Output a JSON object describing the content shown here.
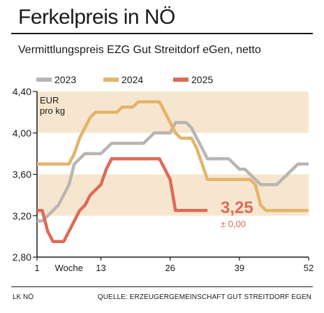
{
  "header": {
    "title": "Ferkelpreis in NÖ",
    "subtitle": "Vermittlungspreis EZG Gut Streitdorf eGen, netto"
  },
  "footer": {
    "left": "LK NÖ",
    "right": "QUELLE: ERZEUGERGEMEINSCHAFT GUT STREITDORF EGEN"
  },
  "colors": {
    "band": "#f7e6cf",
    "axis": "#1a1a1a",
    "text": "#1a1a1a"
  },
  "chart_data": {
    "type": "line",
    "title": "Ferkelpreis in NÖ",
    "subtitle": "Vermittlungspreis EZG Gut Streitdorf eGen, netto",
    "unit_label": [
      "EUR",
      "pro kg"
    ],
    "xlabel": "Woche",
    "xlim": [
      1,
      52
    ],
    "ylim": [
      2.8,
      4.4
    ],
    "xticks": [
      1,
      13,
      26,
      39,
      52
    ],
    "yticks": [
      2.8,
      3.2,
      3.6,
      4.0,
      4.4
    ],
    "ytick_labels": [
      "2,80",
      "3,20",
      "3,60",
      "4,00",
      "4,40"
    ],
    "bands": [
      [
        3.2,
        3.6
      ],
      [
        4.0,
        4.4
      ]
    ],
    "grid": false,
    "legend_position": "top",
    "series": [
      {
        "name": "2023",
        "color": "#b9b5b3",
        "points": [
          [
            1,
            3.15
          ],
          [
            2,
            3.15
          ],
          [
            3,
            3.2
          ],
          [
            4,
            3.25
          ],
          [
            5,
            3.3
          ],
          [
            6,
            3.4
          ],
          [
            7,
            3.5
          ],
          [
            8,
            3.7
          ],
          [
            9,
            3.75
          ],
          [
            10,
            3.8
          ],
          [
            11,
            3.8
          ],
          [
            12,
            3.8
          ],
          [
            13,
            3.8
          ],
          [
            14,
            3.85
          ],
          [
            15,
            3.9
          ],
          [
            16,
            3.9
          ],
          [
            17,
            3.9
          ],
          [
            18,
            3.9
          ],
          [
            19,
            3.9
          ],
          [
            20,
            3.9
          ],
          [
            21,
            3.9
          ],
          [
            22,
            3.95
          ],
          [
            23,
            4.0
          ],
          [
            24,
            4.0
          ],
          [
            25,
            4.0
          ],
          [
            26,
            4.0
          ],
          [
            27,
            4.1
          ],
          [
            28,
            4.1
          ],
          [
            29,
            4.1
          ],
          [
            30,
            4.05
          ],
          [
            31,
            3.95
          ],
          [
            32,
            3.85
          ],
          [
            33,
            3.75
          ],
          [
            34,
            3.75
          ],
          [
            35,
            3.75
          ],
          [
            36,
            3.75
          ],
          [
            37,
            3.75
          ],
          [
            38,
            3.7
          ],
          [
            39,
            3.65
          ],
          [
            40,
            3.65
          ],
          [
            41,
            3.6
          ],
          [
            42,
            3.55
          ],
          [
            43,
            3.5
          ],
          [
            44,
            3.5
          ],
          [
            45,
            3.5
          ],
          [
            46,
            3.5
          ],
          [
            47,
            3.55
          ],
          [
            48,
            3.6
          ],
          [
            49,
            3.65
          ],
          [
            50,
            3.7
          ],
          [
            51,
            3.7
          ],
          [
            52,
            3.7
          ]
        ]
      },
      {
        "name": "2024",
        "color": "#e3b46a",
        "points": [
          [
            1,
            3.7
          ],
          [
            2,
            3.7
          ],
          [
            3,
            3.7
          ],
          [
            4,
            3.7
          ],
          [
            5,
            3.7
          ],
          [
            6,
            3.7
          ],
          [
            7,
            3.7
          ],
          [
            8,
            3.8
          ],
          [
            9,
            3.95
          ],
          [
            10,
            4.05
          ],
          [
            11,
            4.15
          ],
          [
            12,
            4.2
          ],
          [
            13,
            4.2
          ],
          [
            14,
            4.2
          ],
          [
            15,
            4.2
          ],
          [
            16,
            4.2
          ],
          [
            17,
            4.25
          ],
          [
            18,
            4.25
          ],
          [
            19,
            4.25
          ],
          [
            20,
            4.3
          ],
          [
            21,
            4.3
          ],
          [
            22,
            4.3
          ],
          [
            23,
            4.3
          ],
          [
            24,
            4.3
          ],
          [
            25,
            4.2
          ],
          [
            26,
            4.1
          ],
          [
            27,
            4.0
          ],
          [
            28,
            3.95
          ],
          [
            29,
            3.95
          ],
          [
            30,
            3.95
          ],
          [
            31,
            3.85
          ],
          [
            32,
            3.7
          ],
          [
            33,
            3.55
          ],
          [
            34,
            3.55
          ],
          [
            35,
            3.55
          ],
          [
            36,
            3.55
          ],
          [
            37,
            3.55
          ],
          [
            38,
            3.55
          ],
          [
            39,
            3.55
          ],
          [
            40,
            3.55
          ],
          [
            41,
            3.55
          ],
          [
            42,
            3.5
          ],
          [
            43,
            3.3
          ],
          [
            44,
            3.25
          ],
          [
            45,
            3.25
          ],
          [
            46,
            3.25
          ],
          [
            47,
            3.25
          ],
          [
            48,
            3.25
          ],
          [
            49,
            3.25
          ],
          [
            50,
            3.25
          ],
          [
            51,
            3.25
          ],
          [
            52,
            3.25
          ]
        ]
      },
      {
        "name": "2025",
        "color": "#de6a57",
        "points": [
          [
            1,
            3.25
          ],
          [
            2,
            3.25
          ],
          [
            3,
            3.05
          ],
          [
            4,
            2.95
          ],
          [
            5,
            2.95
          ],
          [
            6,
            2.95
          ],
          [
            7,
            3.05
          ],
          [
            8,
            3.15
          ],
          [
            9,
            3.25
          ],
          [
            10,
            3.3
          ],
          [
            11,
            3.4
          ],
          [
            12,
            3.45
          ],
          [
            13,
            3.5
          ],
          [
            14,
            3.65
          ],
          [
            15,
            3.75
          ],
          [
            16,
            3.75
          ],
          [
            17,
            3.75
          ],
          [
            18,
            3.75
          ],
          [
            19,
            3.75
          ],
          [
            20,
            3.75
          ],
          [
            21,
            3.75
          ],
          [
            22,
            3.75
          ],
          [
            23,
            3.75
          ],
          [
            24,
            3.75
          ],
          [
            25,
            3.65
          ],
          [
            26,
            3.55
          ],
          [
            27,
            3.25
          ],
          [
            28,
            3.25
          ],
          [
            29,
            3.25
          ],
          [
            30,
            3.25
          ],
          [
            31,
            3.25
          ],
          [
            32,
            3.25
          ],
          [
            33,
            3.25
          ]
        ]
      }
    ],
    "annotations": [
      {
        "text": "3,25",
        "kind": "current-value"
      },
      {
        "text": "± 0,00",
        "kind": "change"
      }
    ]
  }
}
